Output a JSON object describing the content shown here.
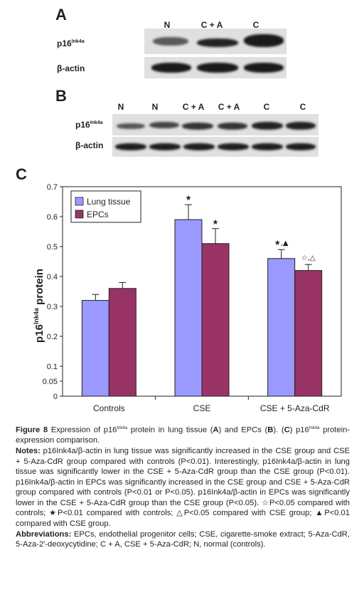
{
  "panelA": {
    "letter": "A",
    "lanes": [
      "N",
      "C + A",
      "C"
    ],
    "row1_label": "p16",
    "row1_sup": "Ink4a",
    "row2_label": "β-actin"
  },
  "panelB": {
    "letter": "B",
    "lanes": [
      "N",
      "N",
      "C + A",
      "C + A",
      "C",
      "C"
    ],
    "row1_label": "p16",
    "row1_sup": "Ink4a",
    "row2_label": "β-actin"
  },
  "panelC": {
    "letter": "C"
  },
  "chart_data": {
    "type": "bar",
    "categories": [
      "Controls",
      "CSE",
      "CSE + 5-Aza-CdR"
    ],
    "series": [
      {
        "name": "Lung tissue",
        "values": [
          0.32,
          0.59,
          0.46
        ],
        "errors": [
          0.02,
          0.05,
          0.03
        ],
        "color": "#9999ff"
      },
      {
        "name": "EPCs",
        "values": [
          0.36,
          0.51,
          0.42
        ],
        "errors": [
          0.02,
          0.05,
          0.02
        ],
        "color": "#993366"
      }
    ],
    "significance": [
      {
        "category": "CSE",
        "series": "Lung tissue",
        "mark": "★"
      },
      {
        "category": "CSE",
        "series": "EPCs",
        "mark": "★"
      },
      {
        "category": "CSE + 5-Aza-CdR",
        "series": "Lung tissue",
        "mark": "★,▲"
      },
      {
        "category": "CSE + 5-Aza-CdR",
        "series": "EPCs",
        "mark": "☆,△"
      }
    ],
    "ylabel": "p16",
    "ylabel_sup": "Ink4a",
    "ylabel_suffix": " protein",
    "ylim": [
      0,
      0.7
    ],
    "yticks": [
      0,
      0.05,
      0.1,
      0.2,
      0.3,
      0.4,
      0.5,
      0.6,
      0.7
    ],
    "ytick_labels": [
      "0",
      "0.05",
      "0.1",
      "0.2",
      "0.3",
      "0.4",
      "0.5",
      "0.6",
      "0.7"
    ],
    "legend_position": "top-left"
  },
  "caption": {
    "figure_label": "Figure 8",
    "figure_text_1": " Expression of p16",
    "figure_sup_1": "Ink4a",
    "figure_text_2": " protein in lung tissue (",
    "figure_A": "A",
    "figure_text_3": ") and EPCs (",
    "figure_B": "B",
    "figure_text_4": "). (",
    "figure_C": "C",
    "figure_text_5": ") p16",
    "figure_sup_2": "Ink4a",
    "figure_text_6": " protein-expression comparison.",
    "notes_label": "Notes:",
    "notes_text": " p16Ink4a/β-actin in lung tissue was significantly increased in the CSE group and CSE + 5-Aza-CdR group compared with controls (P<0.01). Interestingly, p16Ink4a/β-actin in lung tissue was significantly lower in the CSE + 5-Aza-CdR group than the CSE group (P<0.01). p16Ink4a/β-actin in EPCs was significantly increased in the CSE group and CSE + 5-Aza-CdR group compared with controls (P<0.01 or P<0.05). p16Ink4a/β-actin in EPCs was significantly lower in the CSE + 5-Aza-CdR group than the CSE group (P<0.05). ☆P<0.05 compared with controls; ★P<0.01 compared with controls; △P<0.05 compared with CSE group; ▲P<0.01 compared with CSE group.",
    "abbrev_label": "Abbreviations:",
    "abbrev_text": " EPCs, endothelial progenitor cells; CSE, cigarette-smoke extract; 5-Aza-CdR, 5-Aza-2′-deoxycytidine; C + A, CSE + 5-Aza-CdR; N, normal (controls)."
  }
}
